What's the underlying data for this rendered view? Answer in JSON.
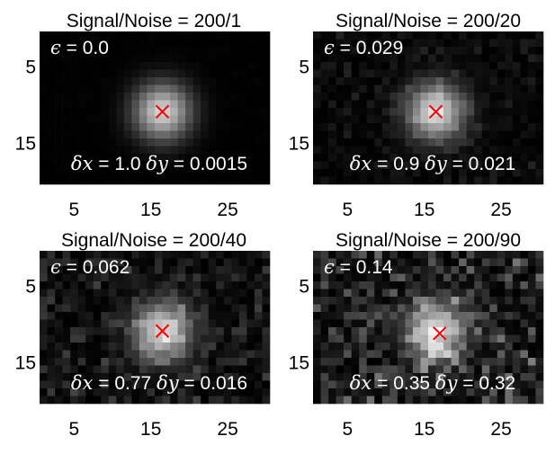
{
  "chart_data": [
    {
      "type": "heatmap",
      "title": "Signal/Noise = 200/1",
      "colormap": "gray",
      "grid_cols": 30,
      "grid_rows": 20,
      "x_ticks": [
        5,
        15,
        25
      ],
      "y_ticks": [
        5,
        15
      ],
      "peak": {
        "x": 15.5,
        "y": 10
      },
      "noise": 0.01,
      "marker": {
        "x": 15.5,
        "y": 10,
        "color": "#ff0000"
      },
      "epsilon_symbol": "ϵ",
      "epsilon_value": " = 0.0",
      "dx_symbol": "δx",
      "dx_value": " = 1.0 ",
      "dy_symbol": "δy",
      "dy_value": " = 0.0015"
    },
    {
      "type": "heatmap",
      "title": "Signal/Noise = 200/20",
      "colormap": "gray",
      "grid_cols": 30,
      "grid_rows": 20,
      "x_ticks": [
        5,
        15,
        25
      ],
      "y_ticks": [
        5,
        15
      ],
      "peak": {
        "x": 15.5,
        "y": 10
      },
      "noise": 0.09,
      "marker": {
        "x": 15.5,
        "y": 10,
        "color": "#ff0000"
      },
      "epsilon_symbol": "ϵ",
      "epsilon_value": " = 0.029",
      "dx_symbol": "δx",
      "dx_value": " = 0.9 ",
      "dy_symbol": "δy",
      "dy_value": " = 0.021"
    },
    {
      "type": "heatmap",
      "title": "Signal/Noise = 200/40",
      "colormap": "gray",
      "grid_cols": 30,
      "grid_rows": 20,
      "x_ticks": [
        5,
        15,
        25
      ],
      "y_ticks": [
        5,
        15
      ],
      "peak": {
        "x": 15.5,
        "y": 10
      },
      "noise": 0.18,
      "marker": {
        "x": 15.5,
        "y": 10,
        "color": "#ff0000"
      },
      "epsilon_symbol": "ϵ",
      "epsilon_value": " = 0.062",
      "dx_symbol": "δx",
      "dx_value": " = 0.77 ",
      "dy_symbol": "δy",
      "dy_value": " = 0.016"
    },
    {
      "type": "heatmap",
      "title": "Signal/Noise = 200/90",
      "colormap": "gray",
      "grid_cols": 30,
      "grid_rows": 20,
      "x_ticks": [
        5,
        15,
        25
      ],
      "y_ticks": [
        5,
        15
      ],
      "peak": {
        "x": 15.5,
        "y": 10
      },
      "noise": 0.32,
      "marker": {
        "x": 16,
        "y": 10.3,
        "color": "#ff0000"
      },
      "epsilon_symbol": "ϵ",
      "epsilon_value": " = 0.14",
      "dx_symbol": "δx",
      "dx_value": " = 0.35 ",
      "dy_symbol": "δy",
      "dy_value": " = 0.32"
    }
  ]
}
